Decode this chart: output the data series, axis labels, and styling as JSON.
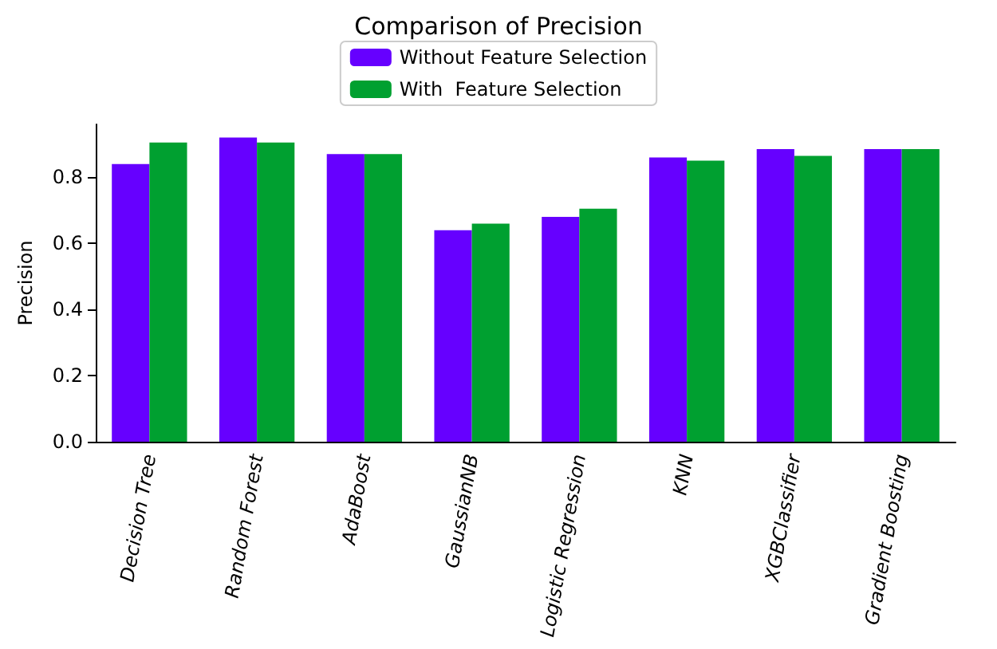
{
  "chart_data": {
    "type": "bar",
    "title": "Comparison of Precision",
    "ylabel": "Precision",
    "categories": [
      "Decision Tree",
      "Random Forest",
      "AdaBoost",
      "GaussianNB",
      "Logistic Regression",
      "KNN",
      "XGBClassifier",
      "Gradient Boosting"
    ],
    "series": [
      {
        "name": "Without Feature Selection",
        "color": "#6600ff",
        "values": [
          0.84,
          0.92,
          0.87,
          0.64,
          0.68,
          0.86,
          0.885,
          0.885
        ]
      },
      {
        "name": "With  Feature Selection",
        "color": "#00a030",
        "values": [
          0.905,
          0.905,
          0.87,
          0.66,
          0.705,
          0.85,
          0.865,
          0.885
        ]
      }
    ],
    "ylim": [
      0,
      0.96
    ],
    "yticks": [
      {
        "value": 0,
        "label": "0.0"
      },
      0.2,
      0.4,
      0.6,
      0.8
    ],
    "grid": false,
    "legend": "top"
  }
}
